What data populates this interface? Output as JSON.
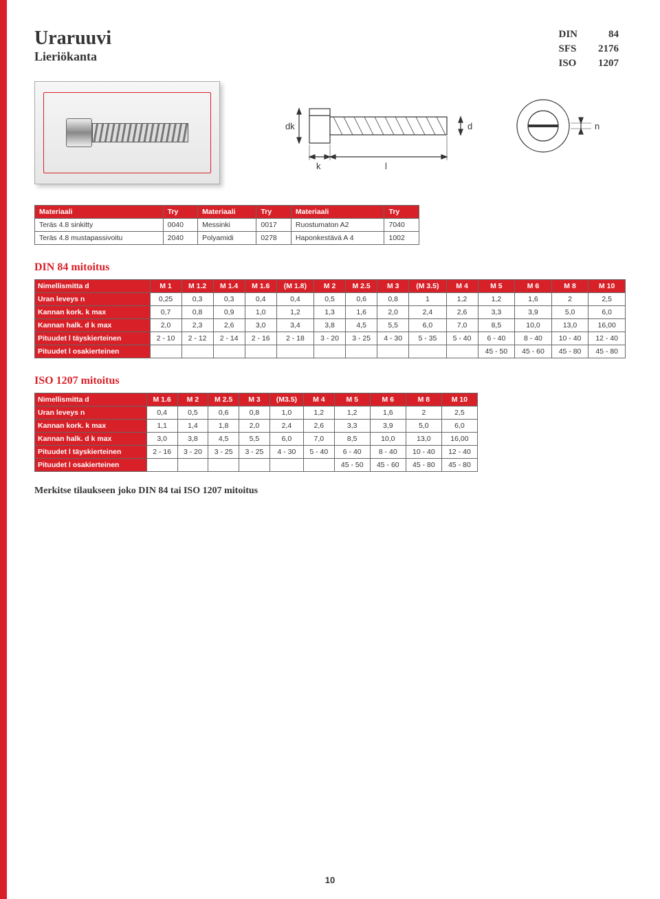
{
  "title": "Uraruuvi",
  "subtitle": "Lieriökanta",
  "standards": [
    [
      "DIN",
      "84"
    ],
    [
      "SFS",
      "2176"
    ],
    [
      "ISO",
      "1207"
    ]
  ],
  "diagram_labels": {
    "dk": "dk",
    "k": "k",
    "l": "l",
    "d": "d",
    "n": "n"
  },
  "materials": {
    "heading": "",
    "headers": [
      "Materiaali",
      "Try",
      "Materiaali",
      "Try",
      "Materiaali",
      "Try"
    ],
    "rows": [
      [
        "Teräs 4.8 sinkitty",
        "0040",
        "Messinki",
        "0017",
        "Ruostumaton A2",
        "7040"
      ],
      [
        "Teräs 4.8 mustapassivoitu",
        "2040",
        "Polyamidi",
        "0278",
        "Haponkestävä A 4",
        "1002"
      ]
    ]
  },
  "din84": {
    "title": "DIN 84 mitoitus",
    "cols": [
      "Nimellismitta d",
      "M 1",
      "M 1.2",
      "M 1.4",
      "M 1.6",
      "(M 1.8)",
      "M 2",
      "M 2.5",
      "M 3",
      "(M 3.5)",
      "M 4",
      "M 5",
      "M 6",
      "M 8",
      "M 10"
    ],
    "rows": [
      [
        "Uran leveys n",
        "0,25",
        "0,3",
        "0,3",
        "0,4",
        "0,4",
        "0,5",
        "0,6",
        "0,8",
        "1",
        "1,2",
        "1,2",
        "1,6",
        "2",
        "2,5"
      ],
      [
        "Kannan kork. k max",
        "0,7",
        "0,8",
        "0,9",
        "1,0",
        "1,2",
        "1,3",
        "1,6",
        "2,0",
        "2,4",
        "2,6",
        "3,3",
        "3,9",
        "5,0",
        "6,0"
      ],
      [
        "Kannan halk. d k max",
        "2,0",
        "2,3",
        "2,6",
        "3,0",
        "3,4",
        "3,8",
        "4,5",
        "5,5",
        "6,0",
        "7,0",
        "8,5",
        "10,0",
        "13,0",
        "16,00"
      ],
      [
        "Pituudet l täyskierteinen",
        "2 - 10",
        "2 - 12",
        "2 - 14",
        "2 - 16",
        "2 - 18",
        "3 - 20",
        "3 - 25",
        "4 - 30",
        "5 - 35",
        "5 - 40",
        "6 - 40",
        "8 - 40",
        "10 - 40",
        "12 - 40"
      ],
      [
        "Pituudet l osakierteinen",
        "",
        "",
        "",
        "",
        "",
        "",
        "",
        "",
        "",
        "",
        "45 - 50",
        "45 - 60",
        "45 - 80",
        "45 - 80"
      ]
    ]
  },
  "iso1207": {
    "title": "ISO 1207 mitoitus",
    "cols": [
      "Nimellismitta d",
      "M 1.6",
      "M 2",
      "M 2.5",
      "M 3",
      "(M3.5)",
      "M 4",
      "M 5",
      "M 6",
      "M 8",
      "M 10"
    ],
    "rows": [
      [
        "Uran leveys n",
        "0,4",
        "0,5",
        "0,6",
        "0,8",
        "1,0",
        "1,2",
        "1,2",
        "1,6",
        "2",
        "2,5"
      ],
      [
        "Kannan kork. k max",
        "1,1",
        "1,4",
        "1,8",
        "2,0",
        "2,4",
        "2,6",
        "3,3",
        "3,9",
        "5,0",
        "6,0"
      ],
      [
        "Kannan halk. d k max",
        "3,0",
        "3,8",
        "4,5",
        "5,5",
        "6,0",
        "7,0",
        "8,5",
        "10,0",
        "13,0",
        "16,00"
      ],
      [
        "Pituudet l täyskierteinen",
        "2 - 16",
        "3 - 20",
        "3 - 25",
        "3 - 25",
        "4 - 30",
        "5 - 40",
        "6 - 40",
        "8 - 40",
        "10 - 40",
        "12 - 40"
      ],
      [
        "Pituudet l osakierteinen",
        "",
        "",
        "",
        "",
        "",
        "",
        "45 - 50",
        "45 - 60",
        "45 - 80",
        "45 - 80"
      ]
    ]
  },
  "note": "Merkitse tilaukseen joko DIN 84 tai ISO 1207 mitoitus",
  "page_number": "10"
}
